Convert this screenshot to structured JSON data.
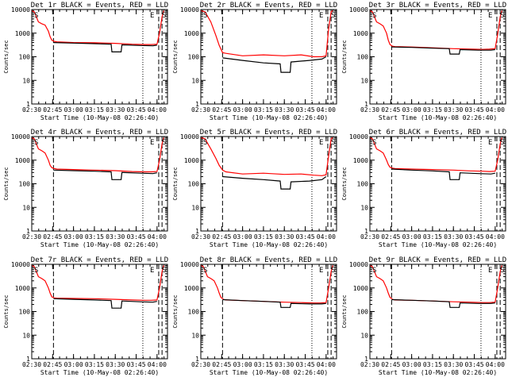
{
  "chart_data": [
    {
      "type": "line",
      "title": "Det 1r BLACK = Events, RED = LLD",
      "xlabel": "Start Time (10-May-08 02:26:40)",
      "ylabel": "Counts/sec",
      "ylim": [
        1,
        10000
      ],
      "y_scale": "log",
      "x_ticks": [
        "02:30",
        "02:45",
        "03:00",
        "03:15",
        "03:30",
        "03:45",
        "04:00"
      ],
      "y_ticks": [
        "1",
        "10",
        "100",
        "1000",
        "10000"
      ],
      "corner_labels": [
        "S",
        "E",
        "S"
      ],
      "series": [
        {
          "color": "#ff0000",
          "x": [
            2.5,
            2.53,
            2.58,
            2.62,
            2.66,
            2.7,
            2.72,
            2.74,
            2.77,
            2.8,
            3.0,
            3.25,
            3.5,
            3.7,
            3.85,
            3.93,
            4.0,
            4.03,
            4.06,
            4.08
          ],
          "y": [
            9000,
            8000,
            3000,
            2500,
            2200,
            1200,
            700,
            500,
            450,
            430,
            400,
            390,
            370,
            340,
            330,
            330,
            340,
            1000,
            5000,
            9000
          ]
        },
        {
          "color": "#000000",
          "x": [
            2.76,
            3.0,
            3.25,
            3.45,
            3.46,
            3.57,
            3.58,
            3.8,
            3.95,
            4.0
          ],
          "y": [
            400,
            380,
            360,
            340,
            160,
            160,
            320,
            300,
            290,
            310
          ]
        }
      ],
      "vlines": [
        {
          "x": 2.76,
          "style": "dash"
        },
        {
          "x": 3.83,
          "style": "dot"
        },
        {
          "x": 4.02,
          "style": "dash"
        },
        {
          "x": 4.06,
          "style": "dash"
        }
      ]
    },
    {
      "type": "line",
      "title": "Det 2r BLACK = Events, RED = LLD",
      "xlabel": "Start Time (10-May-08 02:26:40)",
      "ylabel": "Counts/sec",
      "ylim": [
        1,
        10000
      ],
      "y_scale": "log",
      "x_ticks": [
        "02:30",
        "02:45",
        "03:00",
        "03:15",
        "03:30",
        "03:45",
        "04:00"
      ],
      "y_ticks": [
        "1",
        "10",
        "100",
        "1000",
        "10000"
      ],
      "corner_labels": [
        "S",
        "E",
        "S"
      ],
      "series": [
        {
          "color": "#ff0000",
          "x": [
            2.5,
            2.55,
            2.62,
            2.68,
            2.72,
            2.76,
            2.8,
            3.0,
            3.25,
            3.5,
            3.7,
            3.85,
            3.95,
            4.0,
            4.03,
            4.06,
            4.08
          ],
          "y": [
            9000,
            8000,
            3000,
            800,
            300,
            150,
            140,
            110,
            120,
            110,
            120,
            100,
            100,
            110,
            1500,
            8000,
            9000
          ]
        },
        {
          "color": "#000000",
          "x": [
            2.76,
            3.0,
            3.25,
            3.45,
            3.46,
            3.57,
            3.58,
            3.8,
            3.95,
            4.0
          ],
          "y": [
            90,
            70,
            55,
            50,
            22,
            22,
            60,
            70,
            80,
            100
          ]
        }
      ],
      "vlines": [
        {
          "x": 2.76,
          "style": "dash"
        },
        {
          "x": 3.83,
          "style": "dot"
        },
        {
          "x": 4.02,
          "style": "dash"
        },
        {
          "x": 4.06,
          "style": "dash"
        }
      ]
    },
    {
      "type": "line",
      "title": "Det 3r BLACK = Events, RED = LLD",
      "xlabel": "Start Time (10-May-08 02:26:40)",
      "ylabel": "Counts/sec",
      "ylim": [
        1,
        10000
      ],
      "y_scale": "log",
      "x_ticks": [
        "02:30",
        "02:45",
        "03:00",
        "03:15",
        "03:30",
        "03:45",
        "04:00"
      ],
      "y_ticks": [
        "1",
        "10",
        "100",
        "1000",
        "10000"
      ],
      "corner_labels": [
        "S",
        "E",
        "S"
      ],
      "series": [
        {
          "color": "#ff0000",
          "x": [
            2.5,
            2.53,
            2.58,
            2.62,
            2.66,
            2.7,
            2.72,
            2.74,
            2.77,
            2.8,
            3.0,
            3.25,
            3.5,
            3.7,
            3.85,
            3.93,
            4.0,
            4.03,
            4.06,
            4.08
          ],
          "y": [
            9000,
            8000,
            3000,
            2500,
            2000,
            1000,
            500,
            330,
            280,
            270,
            260,
            240,
            220,
            210,
            205,
            210,
            220,
            900,
            5000,
            9000
          ]
        },
        {
          "color": "#000000",
          "x": [
            2.76,
            3.0,
            3.25,
            3.45,
            3.46,
            3.57,
            3.58,
            3.8,
            3.95,
            4.0
          ],
          "y": [
            260,
            250,
            230,
            220,
            130,
            130,
            200,
            190,
            190,
            200
          ]
        }
      ],
      "vlines": [
        {
          "x": 2.76,
          "style": "dash"
        },
        {
          "x": 3.83,
          "style": "dot"
        },
        {
          "x": 4.02,
          "style": "dash"
        },
        {
          "x": 4.06,
          "style": "dash"
        }
      ]
    },
    {
      "type": "line",
      "title": "Det 4r BLACK = Events, RED = LLD",
      "xlabel": "Start Time (10-May-08 02:26:40)",
      "ylabel": "Counts/sec",
      "ylim": [
        1,
        10000
      ],
      "y_scale": "log",
      "x_ticks": [
        "02:30",
        "02:45",
        "03:00",
        "03:15",
        "03:30",
        "03:45",
        "04:00"
      ],
      "y_ticks": [
        "1",
        "10",
        "100",
        "1000",
        "10000"
      ],
      "corner_labels": [
        "S",
        "E",
        "S"
      ],
      "series": [
        {
          "color": "#ff0000",
          "x": [
            2.5,
            2.53,
            2.58,
            2.62,
            2.66,
            2.7,
            2.72,
            2.74,
            2.77,
            2.8,
            3.0,
            3.25,
            3.5,
            3.7,
            3.85,
            3.93,
            4.0,
            4.03,
            4.06,
            4.08
          ],
          "y": [
            9000,
            8000,
            3000,
            2500,
            2000,
            1000,
            600,
            480,
            440,
            420,
            400,
            380,
            360,
            330,
            320,
            320,
            330,
            1000,
            5000,
            9000
          ]
        },
        {
          "color": "#000000",
          "x": [
            2.76,
            3.0,
            3.25,
            3.45,
            3.46,
            3.57,
            3.58,
            3.8,
            3.95,
            4.0
          ],
          "y": [
            380,
            360,
            340,
            320,
            150,
            150,
            300,
            280,
            270,
            290
          ]
        }
      ],
      "vlines": [
        {
          "x": 2.76,
          "style": "dash"
        },
        {
          "x": 3.83,
          "style": "dot"
        },
        {
          "x": 4.02,
          "style": "dash"
        },
        {
          "x": 4.06,
          "style": "dash"
        }
      ]
    },
    {
      "type": "line",
      "title": "Det 5r BLACK = Events, RED = LLD",
      "xlabel": "Start Time (10-May-08 02:26:40)",
      "ylabel": "Counts/sec",
      "ylim": [
        1,
        10000
      ],
      "y_scale": "log",
      "x_ticks": [
        "02:30",
        "02:45",
        "03:00",
        "03:15",
        "03:30",
        "03:45",
        "04:00"
      ],
      "y_ticks": [
        "1",
        "10",
        "100",
        "1000",
        "10000"
      ],
      "corner_labels": [
        "S",
        "E",
        "S"
      ],
      "series": [
        {
          "color": "#ff0000",
          "x": [
            2.5,
            2.55,
            2.62,
            2.68,
            2.72,
            2.76,
            2.8,
            3.0,
            3.25,
            3.5,
            3.7,
            3.85,
            3.95,
            4.0,
            4.03,
            4.06,
            4.08
          ],
          "y": [
            9000,
            8000,
            3000,
            1200,
            600,
            380,
            320,
            260,
            280,
            250,
            260,
            230,
            220,
            240,
            1500,
            8000,
            9000
          ]
        },
        {
          "color": "#000000",
          "x": [
            2.76,
            3.0,
            3.25,
            3.45,
            3.46,
            3.57,
            3.58,
            3.8,
            3.95,
            4.0
          ],
          "y": [
            200,
            170,
            150,
            130,
            60,
            60,
            120,
            130,
            150,
            200
          ]
        }
      ],
      "vlines": [
        {
          "x": 2.76,
          "style": "dash"
        },
        {
          "x": 3.83,
          "style": "dot"
        },
        {
          "x": 4.02,
          "style": "dash"
        },
        {
          "x": 4.06,
          "style": "dash"
        }
      ]
    },
    {
      "type": "line",
      "title": "Det 6r BLACK = Events, RED = LLD",
      "xlabel": "Start Time (10-May-08 02:26:40)",
      "ylabel": "Counts/sec",
      "ylim": [
        1,
        10000
      ],
      "y_scale": "log",
      "x_ticks": [
        "02:30",
        "02:45",
        "03:00",
        "03:15",
        "03:30",
        "03:45",
        "04:00"
      ],
      "y_ticks": [
        "1",
        "10",
        "100",
        "1000",
        "10000"
      ],
      "corner_labels": [
        "S",
        "E",
        "S"
      ],
      "series": [
        {
          "color": "#ff0000",
          "x": [
            2.5,
            2.53,
            2.58,
            2.62,
            2.66,
            2.7,
            2.72,
            2.74,
            2.77,
            2.8,
            3.0,
            3.25,
            3.5,
            3.7,
            3.85,
            3.93,
            4.0,
            4.03,
            4.06,
            4.08
          ],
          "y": [
            9000,
            8000,
            3000,
            2500,
            2000,
            1000,
            650,
            500,
            460,
            440,
            420,
            400,
            380,
            350,
            340,
            330,
            340,
            1000,
            5000,
            9000
          ]
        },
        {
          "color": "#000000",
          "x": [
            2.76,
            3.0,
            3.25,
            3.45,
            3.46,
            3.57,
            3.58,
            3.8,
            3.95,
            4.0
          ],
          "y": [
            420,
            380,
            350,
            320,
            150,
            150,
            290,
            270,
            260,
            280
          ]
        }
      ],
      "vlines": [
        {
          "x": 2.76,
          "style": "dash"
        },
        {
          "x": 3.83,
          "style": "dot"
        },
        {
          "x": 4.02,
          "style": "dash"
        },
        {
          "x": 4.06,
          "style": "dash"
        }
      ]
    },
    {
      "type": "line",
      "title": "Det 7r BLACK = Events, RED = LLD",
      "xlabel": "Start Time (10-May-08 02:26:40)",
      "ylabel": "Counts/sec",
      "ylim": [
        1,
        10000
      ],
      "y_scale": "log",
      "x_ticks": [
        "02:30",
        "02:45",
        "03:00",
        "03:15",
        "03:30",
        "03:45",
        "04:00"
      ],
      "y_ticks": [
        "1",
        "10",
        "100",
        "1000",
        "10000"
      ],
      "corner_labels": [
        "S",
        "E",
        "S"
      ],
      "series": [
        {
          "color": "#ff0000",
          "x": [
            2.5,
            2.53,
            2.58,
            2.62,
            2.66,
            2.7,
            2.72,
            2.74,
            2.77,
            2.8,
            3.0,
            3.25,
            3.5,
            3.7,
            3.85,
            3.93,
            4.0,
            4.03,
            4.06,
            4.08
          ],
          "y": [
            9000,
            8000,
            3000,
            2500,
            2000,
            1000,
            600,
            420,
            380,
            370,
            360,
            350,
            330,
            310,
            300,
            300,
            310,
            1000,
            5000,
            9000
          ]
        },
        {
          "color": "#000000",
          "x": [
            2.76,
            3.0,
            3.25,
            3.45,
            3.46,
            3.57,
            3.58,
            3.8,
            3.95,
            4.0
          ],
          "y": [
            350,
            330,
            310,
            290,
            140,
            140,
            280,
            260,
            250,
            270
          ]
        }
      ],
      "vlines": [
        {
          "x": 2.76,
          "style": "dash"
        },
        {
          "x": 3.83,
          "style": "dot"
        },
        {
          "x": 4.02,
          "style": "dash"
        },
        {
          "x": 4.06,
          "style": "dash"
        }
      ]
    },
    {
      "type": "line",
      "title": "Det 8r BLACK = Events, RED = LLD",
      "xlabel": "Start Time (10-May-08 02:26:40)",
      "ylabel": "Counts/sec",
      "ylim": [
        1,
        10000
      ],
      "y_scale": "log",
      "x_ticks": [
        "02:30",
        "02:45",
        "03:00",
        "03:15",
        "03:30",
        "03:45",
        "04:00"
      ],
      "y_ticks": [
        "1",
        "10",
        "100",
        "1000",
        "10000"
      ],
      "corner_labels": [
        "S",
        "E",
        "S"
      ],
      "series": [
        {
          "color": "#ff0000",
          "x": [
            2.5,
            2.53,
            2.58,
            2.62,
            2.66,
            2.7,
            2.72,
            2.74,
            2.77,
            2.8,
            3.0,
            3.25,
            3.5,
            3.7,
            3.85,
            3.93,
            4.0,
            4.03,
            4.06,
            4.08
          ],
          "y": [
            9000,
            8000,
            3000,
            2500,
            2000,
            1000,
            600,
            400,
            330,
            310,
            290,
            270,
            250,
            240,
            230,
            230,
            240,
            1000,
            5000,
            9000
          ]
        },
        {
          "color": "#000000",
          "x": [
            2.76,
            3.0,
            3.25,
            3.45,
            3.46,
            3.57,
            3.58,
            3.8,
            3.95,
            4.0
          ],
          "y": [
            320,
            290,
            270,
            250,
            150,
            150,
            220,
            210,
            210,
            220
          ]
        }
      ],
      "vlines": [
        {
          "x": 2.76,
          "style": "dash"
        },
        {
          "x": 3.83,
          "style": "dot"
        },
        {
          "x": 4.02,
          "style": "dash"
        },
        {
          "x": 4.06,
          "style": "dash"
        }
      ]
    },
    {
      "type": "line",
      "title": "Det 9r BLACK = Events, RED = LLD",
      "xlabel": "Start Time (10-May-08 02:26:40)",
      "ylabel": "Counts/sec",
      "ylim": [
        1,
        10000
      ],
      "y_scale": "log",
      "x_ticks": [
        "02:30",
        "02:45",
        "03:00",
        "03:15",
        "03:30",
        "03:45",
        "04:00"
      ],
      "y_ticks": [
        "1",
        "10",
        "100",
        "1000",
        "10000"
      ],
      "corner_labels": [
        "S",
        "E",
        "S"
      ],
      "series": [
        {
          "color": "#ff0000",
          "x": [
            2.5,
            2.53,
            2.58,
            2.62,
            2.66,
            2.7,
            2.72,
            2.74,
            2.77,
            2.8,
            3.0,
            3.25,
            3.5,
            3.7,
            3.85,
            3.93,
            4.0,
            4.03,
            4.06,
            4.08
          ],
          "y": [
            9000,
            8000,
            3000,
            2500,
            2000,
            1000,
            600,
            400,
            330,
            310,
            300,
            280,
            260,
            250,
            240,
            240,
            250,
            1000,
            5000,
            9000
          ]
        },
        {
          "color": "#000000",
          "x": [
            2.76,
            3.0,
            3.25,
            3.45,
            3.46,
            3.57,
            3.58,
            3.8,
            3.95,
            4.0
          ],
          "y": [
            320,
            300,
            280,
            260,
            150,
            150,
            230,
            220,
            220,
            230
          ]
        }
      ],
      "vlines": [
        {
          "x": 2.76,
          "style": "dash"
        },
        {
          "x": 3.83,
          "style": "dot"
        },
        {
          "x": 4.02,
          "style": "dash"
        },
        {
          "x": 4.06,
          "style": "dash"
        }
      ]
    }
  ]
}
